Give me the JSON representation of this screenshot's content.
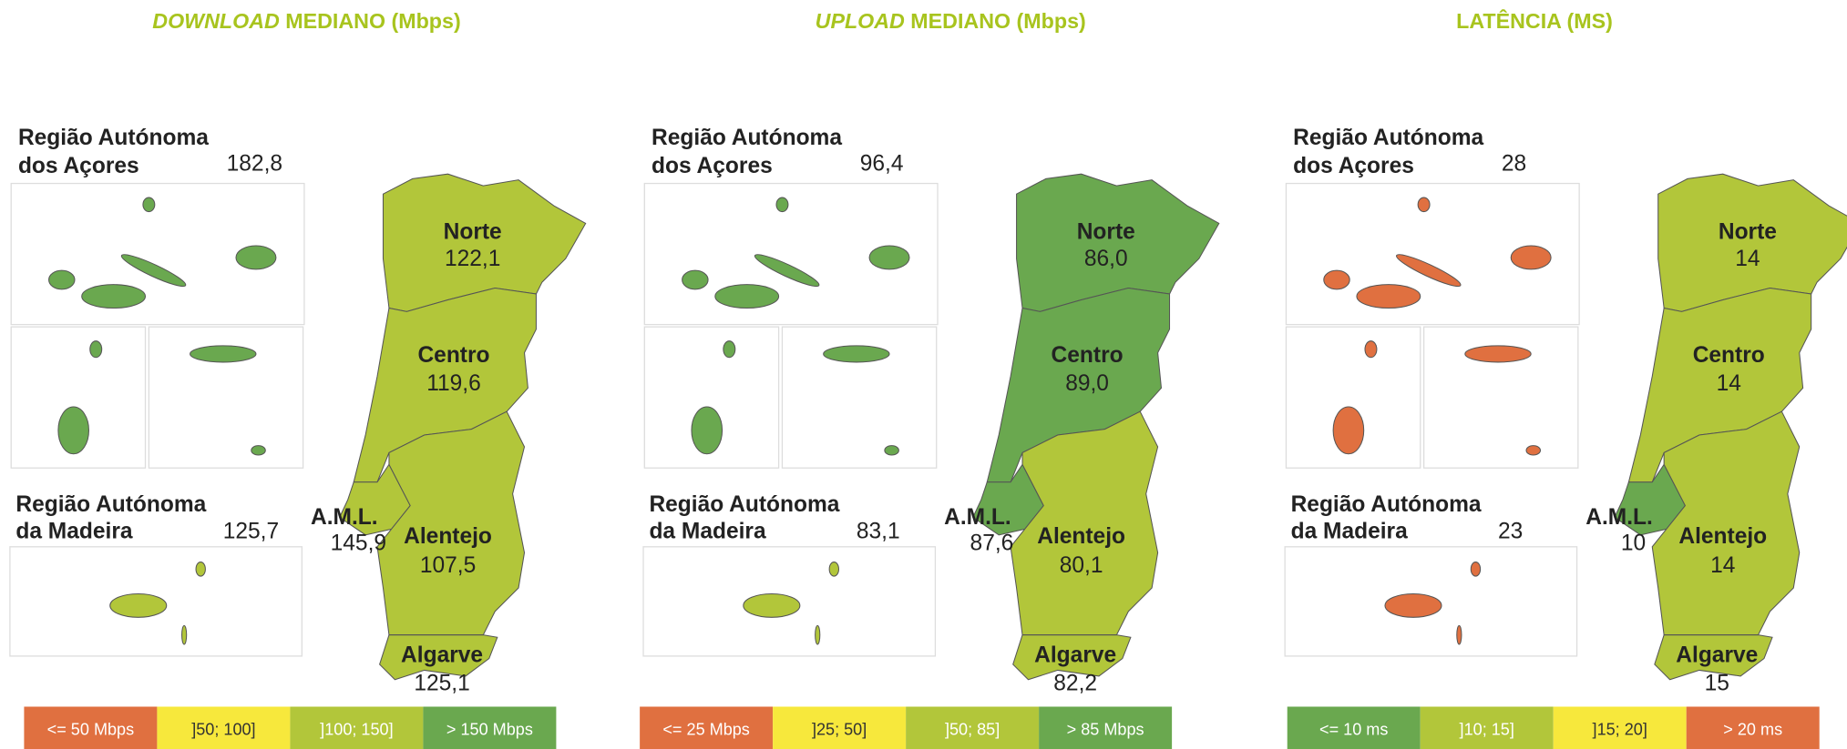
{
  "panels": [
    {
      "title_emphasis": "DOWNLOAD",
      "title": "MEDIANO (Mbps)",
      "azores": {
        "label": [
          "Região Autónoma",
          "dos Açores"
        ],
        "value": "182,8",
        "color": "#6aa84f"
      },
      "madeira": {
        "label": [
          "Região Autónoma",
          "da Madeira"
        ],
        "value": "125,7",
        "color": "#b2c63a"
      },
      "regions": [
        {
          "name": "Norte",
          "value": "122,1",
          "color": "#b2c63a"
        },
        {
          "name": "Centro",
          "value": "119,6",
          "color": "#b2c63a"
        },
        {
          "name": "A.M.L.",
          "value": "145,9",
          "color": "#b2c63a"
        },
        {
          "name": "Alentejo",
          "value": "107,5",
          "color": "#b2c63a"
        },
        {
          "name": "Algarve",
          "value": "125,1",
          "color": "#b2c63a"
        }
      ],
      "legend": [
        {
          "label": "<= 50 Mbps",
          "color": "#e07040"
        },
        {
          "label": "]50; 100]",
          "color": "#f7e83c"
        },
        {
          "label": "]100; 150]",
          "color": "#b2c63a"
        },
        {
          "label": "> 150 Mbps",
          "color": "#6aa84f"
        }
      ]
    },
    {
      "title_emphasis": "UPLOAD",
      "title": "MEDIANO (Mbps)",
      "azores": {
        "label": [
          "Região Autónoma",
          "dos Açores"
        ],
        "value": "96,4",
        "color": "#6aa84f"
      },
      "madeira": {
        "label": [
          "Região Autónoma",
          "da Madeira"
        ],
        "value": "83,1",
        "color": "#b2c63a"
      },
      "regions": [
        {
          "name": "Norte",
          "value": "86,0",
          "color": "#6aa84f"
        },
        {
          "name": "Centro",
          "value": "89,0",
          "color": "#6aa84f"
        },
        {
          "name": "A.M.L.",
          "value": "87,6",
          "color": "#6aa84f"
        },
        {
          "name": "Alentejo",
          "value": "80,1",
          "color": "#b2c63a"
        },
        {
          "name": "Algarve",
          "value": "82,2",
          "color": "#b2c63a"
        }
      ],
      "legend": [
        {
          "label": "<= 25 Mbps",
          "color": "#e07040"
        },
        {
          "label": "]25; 50]",
          "color": "#f7e83c"
        },
        {
          "label": "]50; 85]",
          "color": "#b2c63a"
        },
        {
          "label": "> 85 Mbps",
          "color": "#6aa84f"
        }
      ]
    },
    {
      "title": "LATÊNCIA (MS)",
      "azores": {
        "label": [
          "Região Autónoma",
          "dos Açores"
        ],
        "value": "28",
        "color": "#e07040"
      },
      "madeira": {
        "label": [
          "Região Autónoma",
          "da Madeira"
        ],
        "value": "23",
        "color": "#e07040"
      },
      "regions": [
        {
          "name": "Norte",
          "value": "14",
          "color": "#b2c63a"
        },
        {
          "name": "Centro",
          "value": "14",
          "color": "#b2c63a"
        },
        {
          "name": "A.M.L.",
          "value": "10",
          "color": "#6aa84f"
        },
        {
          "name": "Alentejo",
          "value": "14",
          "color": "#b2c63a"
        },
        {
          "name": "Algarve",
          "value": "15",
          "color": "#b2c63a"
        }
      ],
      "legend": [
        {
          "label": "<= 10 ms",
          "color": "#6aa84f"
        },
        {
          "label": "]10; 15]",
          "color": "#b2c63a"
        },
        {
          "label": "]15; 20]",
          "color": "#f7e83c"
        },
        {
          "label": "> 20 ms",
          "color": "#e07040"
        }
      ]
    }
  ]
}
